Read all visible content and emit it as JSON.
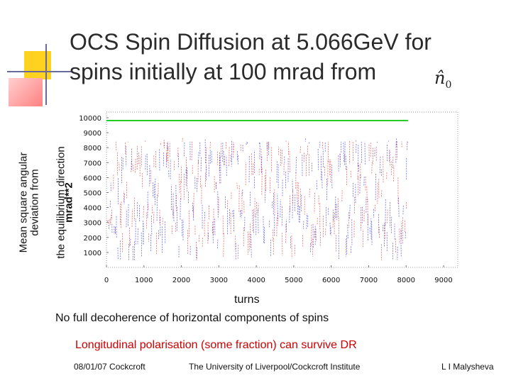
{
  "slide": {
    "title_line1": "OCS Spin Diffusion at 5.066GeV for",
    "title_line2": "spins initially at 100 mrad from",
    "n_hat_symbol": "n̂",
    "n_hat_sub": "0",
    "ylabel_lines": [
      "Mean square angular",
      "deviation from",
      "the equilibrium direction"
    ],
    "ylabel_units": "mrad**2",
    "xlabel": "turns",
    "note1": "No full decoherence of horizontal components of spins",
    "note2": "Longitudinal polarisation (some fraction) can survive  DR",
    "footer_left": "08/01/07 Cockcroft",
    "footer_center": "The University of Liverpool/Cockcroft Institute",
    "footer_right": "L I Malysheva"
  },
  "colors": {
    "title": "#2b2b2b",
    "note2": "#cc0000",
    "green_line": "#22cc22",
    "series_red": "#e23a3a",
    "series_blue": "#3a3ae2",
    "deco_yellow": "#ffd21f",
    "deco_red": "#ff3030"
  },
  "chart_data": {
    "type": "scatter",
    "xlim": [
      0,
      9000
    ],
    "ylim": [
      0,
      10000
    ],
    "xticks": [
      0,
      1000,
      2000,
      3000,
      4000,
      5000,
      6000,
      7000,
      8000,
      9000
    ],
    "yticks": [
      1000,
      2000,
      3000,
      4000,
      5000,
      6000,
      7000,
      8000,
      9000,
      10000
    ],
    "grid": false,
    "reference_line": {
      "y": 10000,
      "x_start": 0,
      "x_end": 8050,
      "color": "#22cc22"
    },
    "band": {
      "x_start": 0,
      "x_end": 8050,
      "y_low": 1000,
      "y_high": 8400,
      "y_center": 5000
    },
    "series": [
      {
        "color": "#e23a3a"
      },
      {
        "color": "#3a3ae2"
      }
    ]
  }
}
